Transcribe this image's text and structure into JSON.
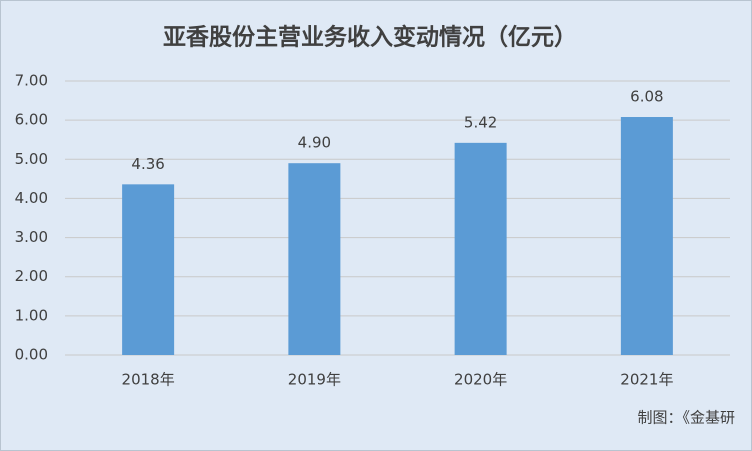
{
  "chart_data": {
    "type": "bar",
    "title": "亚香股份主营业务收入变动情况（亿元）",
    "categories": [
      "2018年",
      "2019年",
      "2020年",
      "2021年"
    ],
    "values": [
      4.36,
      4.9,
      5.42,
      6.08
    ],
    "value_labels": [
      "4.36",
      "4.90",
      "5.42",
      "6.08"
    ],
    "color": "#5b9bd5",
    "ylim": [
      0,
      7
    ],
    "yticks": [
      {
        "value": 0,
        "label": "0.00"
      },
      {
        "value": 1,
        "label": "1.00"
      },
      {
        "value": 2,
        "label": "2.00"
      },
      {
        "value": 3,
        "label": "3.00"
      },
      {
        "value": 4,
        "label": "4.00"
      },
      {
        "value": 5,
        "label": "5.00"
      },
      {
        "value": 6,
        "label": "6.00"
      },
      {
        "value": 7,
        "label": "7.00"
      }
    ],
    "grid": true,
    "source": "制图：《金基研"
  }
}
